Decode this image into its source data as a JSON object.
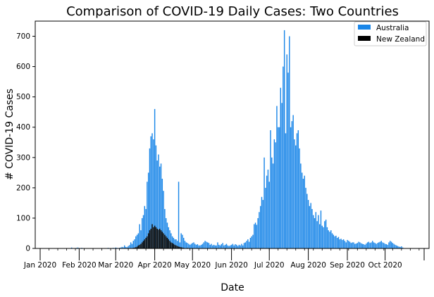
{
  "chart_data": {
    "type": "bar",
    "title": "Comparison of COVID-19 Daily Cases: Two Countries",
    "xlabel": "Date",
    "ylabel": "# COVID-19 Cases",
    "ylim": [
      0,
      750
    ],
    "yticks": [
      0,
      100,
      200,
      300,
      400,
      500,
      600,
      700
    ],
    "x_start": "2020-01-01",
    "x_end": "2020-11-01",
    "xticks": [
      {
        "date": "2020-01-01",
        "label": "Jan 2020"
      },
      {
        "date": "2020-02-01",
        "label": "Feb 2020"
      },
      {
        "date": "2020-03-01",
        "label": "Mar 2020"
      },
      {
        "date": "2020-04-01",
        "label": "Apr 2020"
      },
      {
        "date": "2020-05-01",
        "label": "May 2020"
      },
      {
        "date": "2020-06-01",
        "label": "Jun 2020"
      },
      {
        "date": "2020-07-01",
        "label": "Jul 2020"
      },
      {
        "date": "2020-08-01",
        "label": "Aug 2020"
      },
      {
        "date": "2020-09-01",
        "label": "Sep 2020"
      },
      {
        "date": "2020-10-01",
        "label": "Oct 2020"
      },
      {
        "date": "2020-11-01",
        "label": ""
      }
    ],
    "legend_position": "top-right",
    "series": [
      {
        "name": "Australia",
        "color": "#1a86e8",
        "start_date": "2020-01-01",
        "values": [
          0,
          0,
          0,
          0,
          0,
          0,
          0,
          0,
          0,
          0,
          0,
          0,
          0,
          0,
          0,
          0,
          0,
          0,
          0,
          0,
          0,
          0,
          0,
          0,
          1,
          3,
          1,
          0,
          0,
          2,
          3,
          0,
          1,
          2,
          0,
          1,
          0,
          0,
          0,
          0,
          1,
          0,
          0,
          0,
          0,
          0,
          0,
          0,
          0,
          0,
          0,
          0,
          0,
          0,
          2,
          0,
          0,
          0,
          2,
          1,
          3,
          2,
          0,
          2,
          3,
          5,
          4,
          10,
          5,
          4,
          8,
          11,
          20,
          15,
          25,
          30,
          40,
          45,
          50,
          80,
          60,
          100,
          110,
          140,
          130,
          220,
          250,
          330,
          370,
          380,
          360,
          460,
          340,
          290,
          310,
          270,
          280,
          230,
          190,
          130,
          100,
          85,
          70,
          60,
          50,
          40,
          35,
          30,
          30,
          25,
          220,
          20,
          50,
          45,
          35,
          25,
          20,
          18,
          15,
          12,
          15,
          18,
          20,
          15,
          12,
          14,
          10,
          10,
          12,
          15,
          20,
          25,
          22,
          20,
          18,
          12,
          15,
          10,
          12,
          10,
          10,
          20,
          12,
          10,
          14,
          18,
          10,
          12,
          15,
          10,
          8,
          10,
          12,
          15,
          10,
          14,
          12,
          8,
          12,
          10,
          15,
          10,
          18,
          20,
          25,
          30,
          22,
          35,
          40,
          45,
          80,
          85,
          78,
          100,
          120,
          140,
          170,
          160,
          300,
          200,
          240,
          260,
          220,
          390,
          300,
          280,
          360,
          350,
          470,
          400,
          400,
          530,
          480,
          600,
          720,
          380,
          640,
          580,
          700,
          400,
          420,
          440,
          360,
          340,
          380,
          390,
          330,
          280,
          250,
          230,
          240,
          200,
          180,
          160,
          140,
          150,
          130,
          110,
          100,
          120,
          90,
          110,
          80,
          125,
          75,
          70,
          90,
          95,
          70,
          60,
          55,
          60,
          50,
          45,
          40,
          42,
          35,
          38,
          30,
          32,
          28,
          30,
          25,
          20,
          28,
          25,
          22,
          18,
          20,
          20,
          15,
          16,
          18,
          22,
          20,
          17,
          15,
          14,
          12,
          16,
          20,
          22,
          18,
          20,
          25,
          20,
          18,
          15,
          18,
          20,
          22,
          25,
          20,
          18,
          15,
          14,
          12,
          20,
          25,
          22,
          18,
          15,
          12,
          10,
          8,
          6,
          5,
          7,
          3
        ]
      },
      {
        "name": "New Zealand",
        "color": "#000000",
        "start_date": "2020-01-01",
        "values": [
          0,
          0,
          0,
          0,
          0,
          0,
          0,
          0,
          0,
          0,
          0,
          0,
          0,
          0,
          0,
          0,
          0,
          0,
          0,
          0,
          0,
          0,
          0,
          0,
          0,
          0,
          0,
          0,
          0,
          0,
          0,
          0,
          0,
          0,
          0,
          0,
          0,
          0,
          0,
          0,
          0,
          0,
          0,
          0,
          0,
          0,
          0,
          0,
          0,
          0,
          0,
          0,
          0,
          0,
          0,
          0,
          0,
          0,
          0,
          0,
          0,
          0,
          0,
          0,
          0,
          0,
          0,
          0,
          0,
          0,
          0,
          0,
          1,
          0,
          2,
          3,
          4,
          6,
          10,
          12,
          15,
          20,
          25,
          30,
          35,
          40,
          50,
          60,
          65,
          80,
          70,
          75,
          70,
          65,
          62,
          65,
          60,
          55,
          50,
          45,
          40,
          35,
          30,
          25,
          20,
          18,
          15,
          12,
          10,
          8,
          6,
          5,
          4,
          3,
          2,
          1,
          1,
          2,
          1,
          0,
          1,
          0,
          0,
          1,
          0,
          0,
          0,
          0,
          0,
          0,
          0,
          0,
          0,
          0,
          0,
          0,
          0,
          0,
          0,
          0,
          0,
          0,
          0,
          0,
          0,
          0,
          0,
          0,
          0,
          0,
          0,
          0,
          0,
          0,
          0,
          0,
          0,
          0,
          0,
          0,
          0,
          0,
          0,
          0,
          0,
          0,
          0,
          0,
          0,
          0,
          0,
          0,
          0,
          0,
          0,
          0,
          0,
          0,
          0,
          0,
          0,
          0,
          0,
          0,
          0,
          0,
          0,
          0,
          0,
          0,
          0,
          0,
          0,
          0,
          0,
          0,
          0,
          0,
          0,
          0,
          0,
          0,
          0,
          0,
          0,
          0,
          0,
          0,
          0,
          0,
          0,
          0,
          0,
          0,
          0,
          0,
          0,
          0,
          0,
          0,
          0,
          0,
          0,
          0,
          0,
          0,
          0,
          0,
          0,
          0,
          0,
          0,
          0,
          0,
          0,
          0,
          0,
          0,
          0,
          0,
          0,
          0,
          0,
          0,
          0,
          0,
          0,
          0,
          0,
          0,
          0,
          0,
          0,
          0,
          0,
          0,
          0,
          0,
          0,
          0,
          0,
          0,
          0,
          0,
          0,
          0,
          0,
          0,
          0,
          0,
          0,
          0,
          0,
          0,
          0,
          0,
          0,
          0,
          0,
          0,
          0,
          0,
          0,
          0,
          0,
          0,
          0,
          0,
          0,
          0,
          0,
          0,
          0,
          0,
          0,
          0,
          0,
          0,
          0,
          0,
          0,
          0,
          0,
          0,
          0,
          0,
          0,
          0
        ]
      }
    ]
  }
}
